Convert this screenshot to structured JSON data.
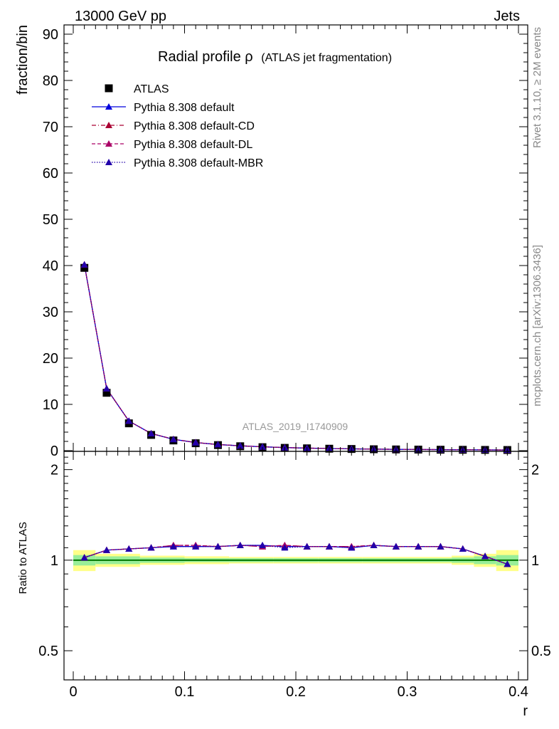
{
  "header": {
    "left": "13000 GeV pp",
    "right": "Jets"
  },
  "side": {
    "rivet": "Rivet 3.1.10, ≥ 2M events",
    "mcplots": "mcplots.cern.ch [arXiv:1306.3436]"
  },
  "analysis_id": "ATLAS_2019_I1740909",
  "colors": {
    "atlas": "#000000",
    "default": "#0000dd",
    "cd": "#aa0033",
    "dl": "#aa0066",
    "mbr": "#2200aa",
    "band_inner": "#99ee99",
    "band_outer": "#ffff88",
    "ref_line": "#007700"
  },
  "chart_data": [
    {
      "type": "scatter",
      "title": "Radial profile ρ",
      "subtitle": "(ATLAS jet fragmentation)",
      "xlabel": "r",
      "ylabel": "fraction/bin",
      "xlim": [
        0,
        0.4
      ],
      "ylim": [
        0,
        92
      ],
      "yticks": [
        0,
        10,
        20,
        30,
        40,
        50,
        60,
        70,
        80,
        90
      ],
      "xticks": [
        "0",
        "0.1",
        "0.2",
        "0.3",
        "0.4"
      ],
      "legend_position": "top-left",
      "x": [
        0.01,
        0.03,
        0.05,
        0.07,
        0.09,
        0.11,
        0.13,
        0.15,
        0.17,
        0.19,
        0.21,
        0.23,
        0.25,
        0.27,
        0.29,
        0.31,
        0.33,
        0.35,
        0.37,
        0.39
      ],
      "series": [
        {
          "name": "ATLAS",
          "marker": "square",
          "values": [
            39.5,
            12.5,
            5.9,
            3.4,
            2.2,
            1.6,
            1.2,
            0.95,
            0.75,
            0.6,
            0.5,
            0.42,
            0.36,
            0.3,
            0.26,
            0.23,
            0.2,
            0.18,
            0.16,
            0.14
          ]
        },
        {
          "name": "Pythia 8.308 default",
          "marker": "triangle",
          "line": "solid",
          "values": [
            40.2,
            13.4,
            6.4,
            3.7,
            2.45,
            1.75,
            1.32,
            1.05,
            0.83,
            0.66,
            0.55,
            0.46,
            0.39,
            0.33,
            0.28,
            0.25,
            0.22,
            0.19,
            0.165,
            0.135
          ]
        },
        {
          "name": "Pythia 8.308 default-CD",
          "marker": "triangle",
          "line": "dashdot",
          "values": [
            40.2,
            13.4,
            6.4,
            3.7,
            2.46,
            1.76,
            1.32,
            1.05,
            0.83,
            0.67,
            0.55,
            0.46,
            0.39,
            0.33,
            0.28,
            0.25,
            0.22,
            0.19,
            0.165,
            0.135
          ]
        },
        {
          "name": "Pythia 8.308 default-DL",
          "marker": "triangle",
          "line": "dashed",
          "values": [
            40.2,
            13.4,
            6.4,
            3.7,
            2.46,
            1.76,
            1.32,
            1.05,
            0.83,
            0.67,
            0.55,
            0.46,
            0.39,
            0.33,
            0.28,
            0.25,
            0.22,
            0.19,
            0.165,
            0.135
          ]
        },
        {
          "name": "Pythia 8.308 default-MBR",
          "marker": "triangle",
          "line": "dotted",
          "values": [
            40.2,
            13.4,
            6.4,
            3.7,
            2.45,
            1.75,
            1.32,
            1.05,
            0.83,
            0.66,
            0.55,
            0.46,
            0.39,
            0.33,
            0.28,
            0.25,
            0.22,
            0.19,
            0.165,
            0.135
          ]
        }
      ]
    },
    {
      "type": "scatter",
      "ylabel": "Ratio to ATLAS",
      "xlabel": "r",
      "ylim": [
        0.4,
        2.3
      ],
      "scale": "log",
      "yticks": [
        0.5,
        1,
        2
      ],
      "yticklabels": [
        "0.5",
        "1",
        "2"
      ],
      "x": [
        0.01,
        0.03,
        0.05,
        0.07,
        0.09,
        0.11,
        0.13,
        0.15,
        0.17,
        0.19,
        0.21,
        0.23,
        0.25,
        0.27,
        0.29,
        0.31,
        0.33,
        0.35,
        0.37,
        0.39
      ],
      "band_x_edges": [
        0.0,
        0.02,
        0.06,
        0.1,
        0.14,
        0.18,
        0.22,
        0.26,
        0.3,
        0.34,
        0.36,
        0.38,
        0.4
      ],
      "band_inner": [
        0.04,
        0.03,
        0.02,
        0.015,
        0.015,
        0.015,
        0.015,
        0.015,
        0.015,
        0.02,
        0.03,
        0.04
      ],
      "band_outer": [
        0.08,
        0.05,
        0.035,
        0.03,
        0.025,
        0.025,
        0.025,
        0.025,
        0.025,
        0.035,
        0.05,
        0.08
      ],
      "series": [
        {
          "name": "Pythia 8.308 default",
          "values": [
            1.02,
            1.08,
            1.09,
            1.1,
            1.11,
            1.11,
            1.11,
            1.12,
            1.12,
            1.11,
            1.11,
            1.11,
            1.1,
            1.12,
            1.11,
            1.11,
            1.11,
            1.09,
            1.03,
            0.97
          ]
        },
        {
          "name": "Pythia 8.308 default-CD",
          "values": [
            1.02,
            1.08,
            1.09,
            1.1,
            1.12,
            1.12,
            1.11,
            1.12,
            1.11,
            1.12,
            1.11,
            1.11,
            1.11,
            1.12,
            1.11,
            1.11,
            1.11,
            1.09,
            1.03,
            0.97
          ]
        },
        {
          "name": "Pythia 8.308 default-DL",
          "values": [
            1.02,
            1.08,
            1.09,
            1.1,
            1.12,
            1.12,
            1.11,
            1.12,
            1.11,
            1.12,
            1.11,
            1.11,
            1.11,
            1.12,
            1.11,
            1.11,
            1.11,
            1.09,
            1.03,
            0.97
          ]
        },
        {
          "name": "Pythia 8.308 default-MBR",
          "values": [
            1.02,
            1.08,
            1.09,
            1.1,
            1.11,
            1.11,
            1.11,
            1.12,
            1.12,
            1.1,
            1.11,
            1.11,
            1.1,
            1.12,
            1.11,
            1.11,
            1.11,
            1.09,
            1.03,
            0.97
          ]
        }
      ]
    }
  ]
}
